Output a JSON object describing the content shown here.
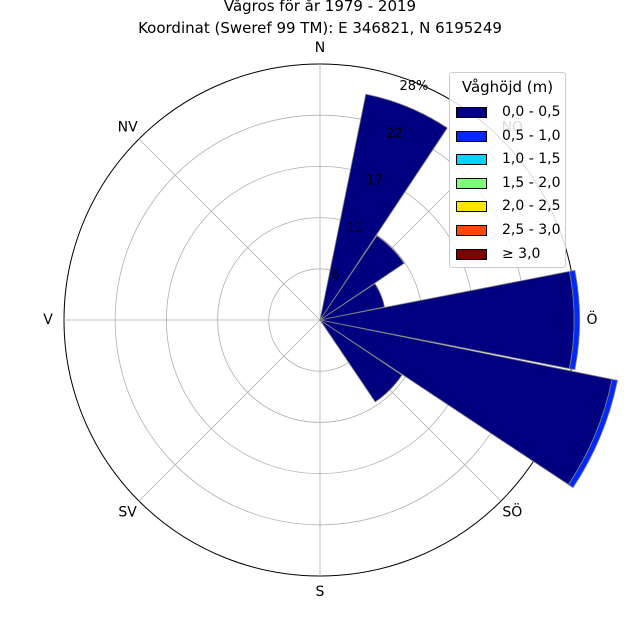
{
  "title": {
    "line1": "Vågros för år 1979 - 2019",
    "line2": "Koordinat (Sweref 99 TM): E 346821, N 6195249"
  },
  "chart_data": {
    "type": "windrose",
    "title": "Vågros för år 1979 - 2019",
    "subtitle": "Koordinat (Sweref 99 TM): E 346821, N 6195249",
    "directions": [
      "N",
      "NÖ",
      "Ö",
      "SÖ",
      "S",
      "SV",
      "V",
      "NV"
    ],
    "radial_ticks": [
      "6",
      "11",
      "17",
      "22",
      "28%"
    ],
    "radial_tick_values": [
      5.6,
      11.2,
      16.8,
      22.4,
      28
    ],
    "rmax": 28,
    "sector_width_deg": 22.5,
    "grid": true,
    "legend_title": "Våghöjd (m)",
    "legend_placement": "top-right",
    "bins": [
      {
        "label": "0,0 - 0,5",
        "color": "#000080"
      },
      {
        "label": "0,5 - 1,0",
        "color": "#0028ff"
      },
      {
        "label": "1,0 - 1,5",
        "color": "#00d4ff"
      },
      {
        "label": "1,5 - 2,0",
        "color": "#7dff7a"
      },
      {
        "label": "2,0 - 2,5",
        "color": "#ffe600"
      },
      {
        "label": "2,5 - 3,0",
        "color": "#ff4800"
      },
      {
        "label": "≥ 3,0",
        "color": "#800000"
      }
    ],
    "sectors": [
      {
        "direction_deg": 22.5,
        "values": [
          25.2,
          0.0
        ]
      },
      {
        "direction_deg": 45,
        "values": [
          11.1,
          0.0
        ]
      },
      {
        "direction_deg": 67.5,
        "values": [
          7.2,
          0.0
        ]
      },
      {
        "direction_deg": 90,
        "values": [
          27.8,
          0.6
        ]
      },
      {
        "direction_deg": 112.5,
        "values": [
          32.6,
          0.6
        ]
      },
      {
        "direction_deg": 135,
        "values": [
          10.8,
          0.0
        ]
      }
    ]
  }
}
